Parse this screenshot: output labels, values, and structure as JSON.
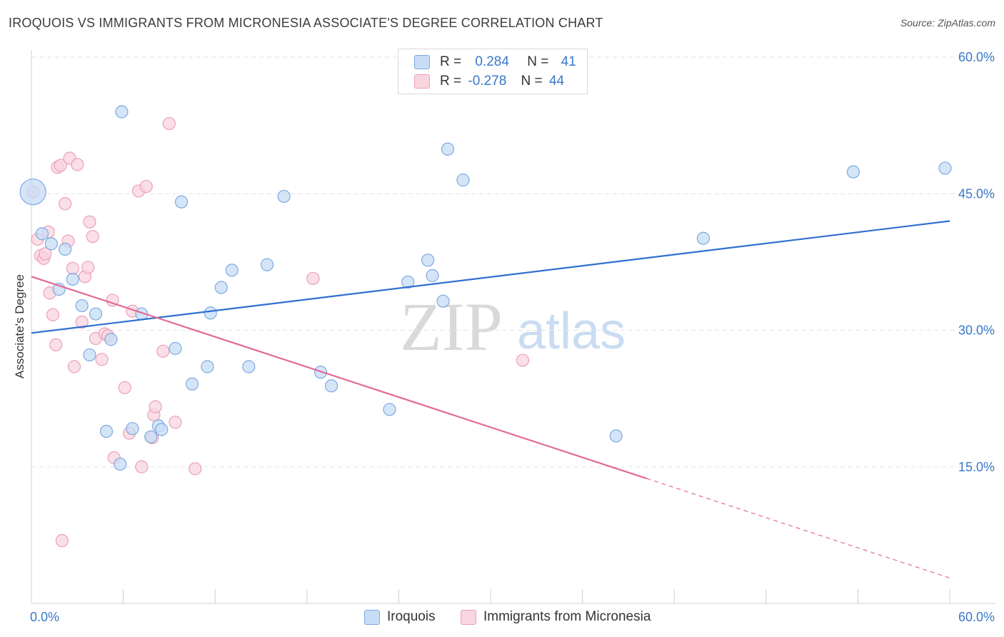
{
  "header": {
    "title": "IROQUOIS VS IMMIGRANTS FROM MICRONESIA ASSOCIATE'S DEGREE CORRELATION CHART",
    "source": "Source: ZipAtlas.com"
  },
  "legend": {
    "rows": [
      {
        "r_label": "R =",
        "r_value": "0.284",
        "n_label": "N =",
        "n_value": "41",
        "color": "#a9c8f0"
      },
      {
        "r_label": "R =",
        "r_value": "-0.278",
        "n_label": "N =",
        "n_value": "44",
        "color": "#f6b8cb"
      }
    ]
  },
  "bottom_legend": [
    {
      "label": "Iroquois",
      "color": "#a9c8f0"
    },
    {
      "label": "Immigrants from Micronesia",
      "color": "#f6b8cb"
    }
  ],
  "watermark": {
    "zip": "ZIP",
    "atlas": "atlas"
  },
  "colors": {
    "blue_line": "#2f6fd0",
    "pink_line": "#e26a95",
    "blue_fill": "#c7dcf6",
    "blue_stroke": "#7ea9e0",
    "pink_fill": "#fad4df",
    "pink_stroke": "#eba0b8",
    "tick_label": "#3a78c9",
    "grid": "#e3e3e3"
  },
  "chart_data": {
    "type": "scatter",
    "title": "IROQUOIS VS IMMIGRANTS FROM MICRONESIA ASSOCIATE'S DEGREE CORRELATION CHART",
    "xlabel": "",
    "ylabel": "Associate's Degree",
    "xlim": [
      0,
      60
    ],
    "ylim": [
      0,
      63
    ],
    "x_tick_labels": [
      "0.0%",
      "60.0%"
    ],
    "y_ticks": [
      15,
      30,
      45,
      60
    ],
    "y_tick_labels": [
      "15.0%",
      "30.0%",
      "45.0%",
      "60.0%"
    ],
    "grid": true,
    "legend_position": "top-center",
    "series": [
      {
        "name": "Iroquois",
        "r": 0.284,
        "n": 41,
        "trend": {
          "x": [
            0,
            60
          ],
          "y": [
            29.7,
            42.0
          ],
          "dashed_from": null
        },
        "points": [
          {
            "x": 0.1,
            "y": 45.2,
            "big": true
          },
          {
            "x": 0.7,
            "y": 40.6
          },
          {
            "x": 1.3,
            "y": 39.5
          },
          {
            "x": 1.8,
            "y": 34.5
          },
          {
            "x": 2.2,
            "y": 38.9
          },
          {
            "x": 2.7,
            "y": 35.6
          },
          {
            "x": 3.3,
            "y": 32.7
          },
          {
            "x": 3.8,
            "y": 27.3
          },
          {
            "x": 4.2,
            "y": 31.8
          },
          {
            "x": 4.9,
            "y": 18.9
          },
          {
            "x": 5.2,
            "y": 29.0
          },
          {
            "x": 5.9,
            "y": 54.0
          },
          {
            "x": 5.8,
            "y": 15.3
          },
          {
            "x": 6.6,
            "y": 19.2
          },
          {
            "x": 7.2,
            "y": 31.8
          },
          {
            "x": 7.8,
            "y": 18.3
          },
          {
            "x": 8.3,
            "y": 19.5
          },
          {
            "x": 8.5,
            "y": 19.1
          },
          {
            "x": 9.4,
            "y": 28.0
          },
          {
            "x": 9.8,
            "y": 44.1
          },
          {
            "x": 10.5,
            "y": 24.1
          },
          {
            "x": 11.5,
            "y": 26.0
          },
          {
            "x": 11.7,
            "y": 31.9
          },
          {
            "x": 12.4,
            "y": 34.7
          },
          {
            "x": 13.1,
            "y": 36.6
          },
          {
            "x": 14.2,
            "y": 26.0
          },
          {
            "x": 15.4,
            "y": 37.2
          },
          {
            "x": 16.5,
            "y": 44.7
          },
          {
            "x": 18.9,
            "y": 25.4
          },
          {
            "x": 19.6,
            "y": 23.9
          },
          {
            "x": 23.4,
            "y": 21.3
          },
          {
            "x": 24.6,
            "y": 35.3
          },
          {
            "x": 25.9,
            "y": 37.7
          },
          {
            "x": 26.2,
            "y": 36.0
          },
          {
            "x": 26.9,
            "y": 33.2
          },
          {
            "x": 27.2,
            "y": 49.9
          },
          {
            "x": 28.2,
            "y": 46.5
          },
          {
            "x": 38.2,
            "y": 18.4
          },
          {
            "x": 43.9,
            "y": 40.1
          },
          {
            "x": 53.7,
            "y": 47.4
          },
          {
            "x": 59.7,
            "y": 47.8
          }
        ]
      },
      {
        "name": "Immigrants from Micronesia",
        "r": -0.278,
        "n": 44,
        "trend": {
          "x": [
            0,
            60
          ],
          "y": [
            35.9,
            2.8
          ],
          "dashed_from": 40.2
        },
        "points": [
          {
            "x": 0.1,
            "y": 45.2
          },
          {
            "x": 0.4,
            "y": 40.0
          },
          {
            "x": 0.6,
            "y": 38.2
          },
          {
            "x": 0.8,
            "y": 37.9
          },
          {
            "x": 0.9,
            "y": 38.4
          },
          {
            "x": 1.1,
            "y": 40.8
          },
          {
            "x": 1.2,
            "y": 34.1
          },
          {
            "x": 1.4,
            "y": 31.7
          },
          {
            "x": 1.6,
            "y": 28.4
          },
          {
            "x": 1.7,
            "y": 47.9
          },
          {
            "x": 1.9,
            "y": 48.1
          },
          {
            "x": 2.0,
            "y": 6.9
          },
          {
            "x": 2.2,
            "y": 43.9
          },
          {
            "x": 2.4,
            "y": 39.8
          },
          {
            "x": 2.5,
            "y": 48.9
          },
          {
            "x": 2.7,
            "y": 36.8
          },
          {
            "x": 2.8,
            "y": 26.0
          },
          {
            "x": 3.0,
            "y": 48.2
          },
          {
            "x": 3.3,
            "y": 30.9
          },
          {
            "x": 3.5,
            "y": 35.9
          },
          {
            "x": 3.7,
            "y": 36.9
          },
          {
            "x": 3.8,
            "y": 41.9
          },
          {
            "x": 4.0,
            "y": 40.3
          },
          {
            "x": 4.2,
            "y": 29.1
          },
          {
            "x": 4.6,
            "y": 26.8
          },
          {
            "x": 4.8,
            "y": 29.6
          },
          {
            "x": 5.0,
            "y": 29.4
          },
          {
            "x": 5.3,
            "y": 33.3
          },
          {
            "x": 5.4,
            "y": 16.0
          },
          {
            "x": 6.1,
            "y": 23.7
          },
          {
            "x": 6.4,
            "y": 18.7
          },
          {
            "x": 6.6,
            "y": 32.1
          },
          {
            "x": 7.0,
            "y": 45.3
          },
          {
            "x": 7.2,
            "y": 15.0
          },
          {
            "x": 7.5,
            "y": 45.8
          },
          {
            "x": 7.9,
            "y": 18.2
          },
          {
            "x": 8.0,
            "y": 20.7
          },
          {
            "x": 8.1,
            "y": 21.6
          },
          {
            "x": 8.6,
            "y": 27.7
          },
          {
            "x": 9.0,
            "y": 52.7
          },
          {
            "x": 9.4,
            "y": 19.9
          },
          {
            "x": 10.7,
            "y": 14.8
          },
          {
            "x": 18.4,
            "y": 35.7
          },
          {
            "x": 32.1,
            "y": 26.7
          }
        ]
      }
    ]
  }
}
